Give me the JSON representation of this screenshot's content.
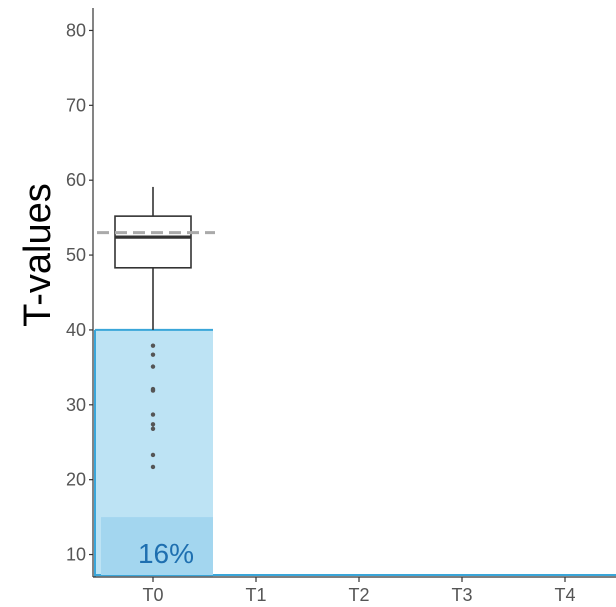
{
  "chart_data": {
    "type": "box",
    "categories": [
      "T0",
      "T1",
      "T2",
      "T3",
      "T4"
    ],
    "ylabel": "T-values",
    "xlabel": "",
    "ylim": [
      7,
      83
    ],
    "yticks": [
      10,
      20,
      30,
      40,
      50,
      60,
      70,
      80
    ],
    "grid": false,
    "reference_line": {
      "y": 53,
      "style": "dashed",
      "color": "#aaaaaa"
    },
    "threshold_band": {
      "category": "T0",
      "from": 7,
      "to": 40,
      "color": "#bde3f4",
      "edge_color": "#3aa6d9"
    },
    "boxes": [
      {
        "category": "T0",
        "min": 40,
        "q1": 48.3,
        "median": 52.4,
        "q3": 55.2,
        "max": 59.1,
        "outliers": [
          37.9,
          36.7,
          35.1,
          32.1,
          31.9,
          28.7,
          27.4,
          26.8,
          23.3,
          21.7
        ]
      }
    ],
    "annotations": [
      {
        "category": "T0",
        "text": "16%",
        "band_from": 7,
        "band_to": 15,
        "color": "#a3d6ef"
      }
    ]
  }
}
